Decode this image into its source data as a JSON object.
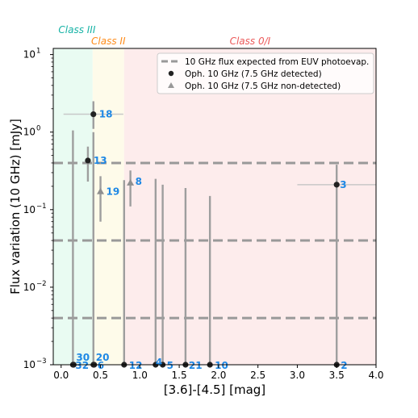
{
  "chart_data": {
    "type": "scatter",
    "title": "",
    "xlabel": "[3.6]-[4.5] [mag]",
    "ylabel": "Flux variation (10 GHz) [mJy]",
    "xlim": [
      -0.1,
      4.0
    ],
    "ylim": [
      0.001,
      12
    ],
    "yscale": "log",
    "grid": false,
    "x_ticks": [
      0.0,
      0.5,
      1.0,
      1.5,
      2.0,
      2.5,
      3.0,
      3.5,
      4.0
    ],
    "x_tick_labels": [
      "0.0",
      "0.5",
      "1.0",
      "1.5",
      "2.0",
      "2.5",
      "3.0",
      "3.5",
      "4.0"
    ],
    "y_ticks": [
      0.001,
      0.01,
      0.1,
      1,
      10
    ],
    "y_tick_labels": [
      {
        "base": "10",
        "exp": "−3"
      },
      {
        "base": "10",
        "exp": "−2"
      },
      {
        "base": "10",
        "exp": "−1"
      },
      {
        "base": "10",
        "exp": "0"
      },
      {
        "base": "10",
        "exp": "1"
      }
    ],
    "class_regions": [
      {
        "label": "Class III",
        "x_range": [
          -0.1,
          0.4
        ],
        "color": "#e9fbf2",
        "label_color": "#17b3a6"
      },
      {
        "label": "Class II",
        "x_range": [
          0.4,
          0.8
        ],
        "color": "#fefbea",
        "label_color": "#ff8c1a"
      },
      {
        "label": "Class 0/I",
        "x_range": [
          0.8,
          4.0
        ],
        "color": "#fdecec",
        "label_color": "#ec5b5b"
      }
    ],
    "euv_lines": [
      0.4,
      0.04,
      0.004
    ],
    "legend": {
      "placement": "top-right",
      "entries": [
        {
          "label": "10 GHz flux expected from EUV photoevap.",
          "marker": "dashed-line",
          "color": "#999999"
        },
        {
          "label": "Oph. 10 GHz (7.5 GHz detected)",
          "marker": "circle",
          "color": "#222222"
        },
        {
          "label": "Oph. 10 GHz (7.5 GHz non-detected)",
          "marker": "triangle",
          "color": "#999999"
        }
      ]
    },
    "series": [
      {
        "name": "Oph. 10 GHz (7.5 GHz detected)",
        "marker": "circle",
        "points": [
          {
            "id": "18",
            "x": 0.41,
            "y": 1.7,
            "ylo": 1.1,
            "yhi": 2.5,
            "xlo": 0.03,
            "xhi": 0.79
          },
          {
            "id": "13",
            "x": 0.34,
            "y": 0.43,
            "ylo": 0.23,
            "yhi": 0.65
          },
          {
            "id": "3",
            "x": 3.5,
            "y": 0.21,
            "ylo": 0.001,
            "yhi": 0.38,
            "xlo": 3.0,
            "xhi": 4.0
          },
          {
            "id": "30",
            "x": 0.15,
            "y": 0.001,
            "yhi": 1.05
          },
          {
            "id": "32",
            "x": 0.16,
            "y": 0.001
          },
          {
            "id": "20",
            "x": 0.41,
            "y": 0.001,
            "yhi": 1.0
          },
          {
            "id": "6",
            "x": 0.42,
            "y": 0.001
          },
          {
            "id": "12",
            "x": 0.8,
            "y": 0.001,
            "yhi": 0.24
          },
          {
            "id": "4",
            "x": 1.2,
            "y": 0.001,
            "yhi": 0.25
          },
          {
            "id": "5",
            "x": 1.29,
            "y": 0.001,
            "yhi": 0.21
          },
          {
            "id": "21",
            "x": 1.58,
            "y": 0.001,
            "yhi": 0.19
          },
          {
            "id": "10",
            "x": 1.89,
            "y": 0.001,
            "yhi": 0.15
          },
          {
            "id": "2",
            "x": 3.5,
            "y": 0.001
          }
        ]
      },
      {
        "name": "Oph. 10 GHz (7.5 GHz non-detected)",
        "marker": "triangle",
        "points": [
          {
            "id": "19",
            "x": 0.5,
            "y": 0.17,
            "ylo": 0.07,
            "yhi": 0.27
          },
          {
            "id": "8",
            "x": 0.88,
            "y": 0.22,
            "ylo": 0.11,
            "yhi": 0.32
          }
        ]
      }
    ],
    "point_label_color": "#1e88e5"
  }
}
